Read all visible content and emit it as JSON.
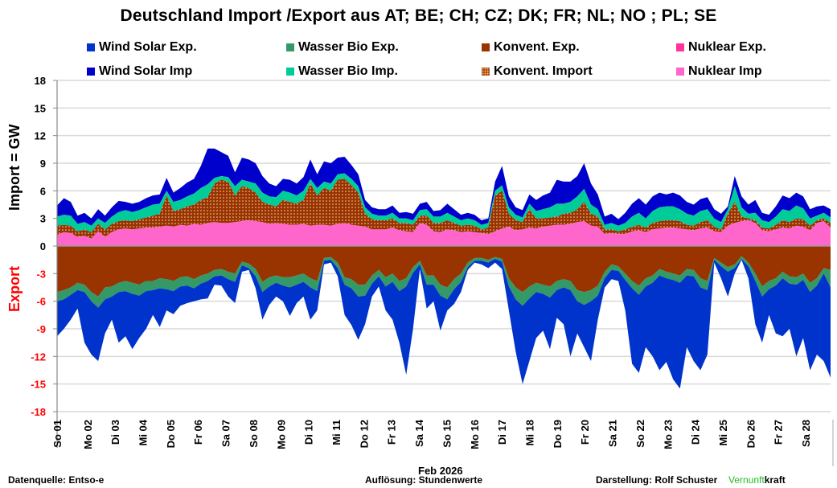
{
  "chart_data": {
    "type": "area",
    "title": "Deutschland  Import /Export  aus AT;  BE;  CH;  CZ;  DK;  FR;  NL;  NO ;  PL;  SE",
    "ylabel_import": "Import   = GW",
    "ylabel_export": "Export",
    "xlabel": "Feb 2026",
    "ylim": [
      -18,
      18
    ],
    "yticks": [
      "18",
      "15",
      "12",
      "9",
      "6",
      "3",
      "0",
      "-3",
      "-6",
      "-9",
      "-12",
      "-15",
      "-18"
    ],
    "ytick_values": [
      18,
      15,
      12,
      9,
      6,
      3,
      0,
      -3,
      -6,
      -9,
      -12,
      -15,
      -18
    ],
    "grid": true,
    "legend_placement": "top",
    "x_tick_labels": [
      "So 01",
      "Mo 02",
      "Di 03",
      "Mi 04",
      "Do 05",
      "Fr 06",
      "Sa 07",
      "So 08",
      "Mo 09",
      "Di 10",
      "Mi 11",
      "Do 12",
      "Fr 13",
      "Sa 14",
      "So 15",
      "Mo 16",
      "Di 17",
      "Mi 18",
      "Do 19",
      "Fr 20",
      "Sa 21",
      "So 22",
      "Mo 23",
      "Di 24",
      "Mi 25",
      "Do 26",
      "Fr 27",
      "Sa 28"
    ],
    "x_unit": "day (6-hour resolution samples)",
    "legend": [
      {
        "name": "Wind Solar Exp.",
        "color": "#0033cc"
      },
      {
        "name": "Wasser Bio Exp.",
        "color": "#339966"
      },
      {
        "name": "Konvent. Exp.",
        "color": "#993300"
      },
      {
        "name": "Nuklear Exp.",
        "color": "#ff3399"
      },
      {
        "name": "Wind Solar Imp",
        "color": "#0000cc"
      },
      {
        "name": "Wasser Bio Imp.",
        "color": "#00cc99"
      },
      {
        "name": "Konvent. Import",
        "color": "#993300",
        "pattern": "dotted"
      },
      {
        "name": "Nuklear Imp",
        "color": "#ff66cc"
      }
    ],
    "import_cumulative": {
      "nuklear": [
        1.2,
        1.5,
        1.4,
        1.0,
        1.1,
        0.8,
        1.6,
        1.0,
        1.5,
        1.8,
        1.9,
        1.8,
        1.9,
        2.0,
        2.0,
        2.1,
        2.2,
        2.1,
        2.3,
        2.2,
        2.4,
        2.3,
        2.5,
        2.6,
        2.5,
        2.5,
        2.6,
        2.7,
        2.8,
        2.7,
        2.6,
        2.4,
        2.5,
        2.4,
        2.3,
        2.3,
        2.4,
        2.2,
        2.3,
        2.3,
        2.2,
        2.4,
        2.5,
        2.3,
        2.2,
        2.1,
        1.8,
        1.8,
        1.8,
        2.0,
        1.7,
        1.6,
        1.5,
        2.5,
        2.3,
        1.6,
        1.5,
        1.8,
        1.7,
        1.5,
        1.6,
        1.5,
        1.4,
        1.3,
        1.6,
        1.9,
        2.1,
        1.7,
        1.8,
        2.0,
        1.9,
        2.1,
        2.2,
        2.3,
        2.3,
        2.4,
        2.6,
        2.7,
        2.2,
        2.1,
        1.3,
        1.4,
        1.3,
        1.3,
        1.6,
        1.7,
        1.5,
        1.8,
        1.9,
        2.0,
        2.0,
        1.9,
        1.8,
        1.7,
        1.9,
        2.0,
        1.6,
        1.5,
        2.2,
        2.5,
        2.7,
        2.8,
        2.5,
        1.7,
        1.6,
        1.8,
        2.0,
        1.9,
        2.2,
        2.1,
        1.7,
        2.5,
        2.7,
        2.0
      ],
      "konvent": [
        2.2,
        2.3,
        2.2,
        1.6,
        1.8,
        1.5,
        2.4,
        1.8,
        2.4,
        2.7,
        2.8,
        2.7,
        2.9,
        3.1,
        3.3,
        3.5,
        5.5,
        3.8,
        4.0,
        4.3,
        4.5,
        5.0,
        5.3,
        6.8,
        7.2,
        7.0,
        5.5,
        6.5,
        6.3,
        5.8,
        4.8,
        4.5,
        4.3,
        5.0,
        4.8,
        4.6,
        5.0,
        6.8,
        5.5,
        6.3,
        6.0,
        7.2,
        7.3,
        6.6,
        5.8,
        3.5,
        2.9,
        2.8,
        2.8,
        3.0,
        2.5,
        2.5,
        2.3,
        3.3,
        3.3,
        2.5,
        2.5,
        2.8,
        2.5,
        2.2,
        2.3,
        2.2,
        1.8,
        2.0,
        5.5,
        6.0,
        3.5,
        2.8,
        2.6,
        4.0,
        3.0,
        3.0,
        3.1,
        3.2,
        3.5,
        3.6,
        4.0,
        4.8,
        3.5,
        3.2,
        1.8,
        1.8,
        1.6,
        1.8,
        2.1,
        2.3,
        2.0,
        2.5,
        2.7,
        2.8,
        2.8,
        2.7,
        2.3,
        2.2,
        2.6,
        2.8,
        2.1,
        1.8,
        3.5,
        4.8,
        3.2,
        3.0,
        2.8,
        2.0,
        1.9,
        2.3,
        2.8,
        2.6,
        3.0,
        2.9,
        2.2,
        2.8,
        3.0,
        2.5
      ],
      "wasser": [
        3.2,
        3.4,
        3.3,
        2.4,
        2.6,
        2.2,
        3.0,
        2.5,
        3.2,
        3.7,
        3.9,
        3.7,
        3.9,
        4.2,
        4.5,
        4.6,
        6.0,
        4.8,
        5.0,
        5.4,
        5.7,
        6.3,
        6.7,
        7.4,
        7.6,
        7.5,
        6.5,
        7.2,
        7.0,
        6.8,
        5.8,
        5.4,
        5.3,
        6.0,
        5.8,
        5.5,
        6.0,
        7.3,
        6.3,
        7.0,
        6.8,
        7.8,
        7.9,
        7.3,
        6.5,
        4.2,
        3.5,
        3.3,
        3.3,
        3.6,
        3.0,
        3.0,
        2.8,
        3.9,
        4.0,
        3.2,
        3.2,
        3.6,
        3.2,
        2.8,
        3.0,
        2.8,
        2.3,
        2.5,
        6.0,
        6.6,
        4.2,
        3.4,
        3.1,
        4.6,
        3.8,
        4.0,
        4.2,
        4.6,
        4.6,
        4.8,
        5.4,
        6.2,
        4.5,
        4.0,
        2.3,
        2.5,
        2.2,
        2.5,
        3.2,
        3.6,
        3.0,
        3.8,
        4.2,
        4.3,
        4.3,
        4.0,
        3.5,
        3.3,
        3.8,
        4.0,
        3.0,
        2.6,
        4.0,
        6.5,
        4.2,
        3.5,
        3.6,
        2.8,
        2.6,
        3.2,
        4.0,
        3.8,
        4.4,
        4.1,
        3.0,
        3.3,
        3.6,
        3.1
      ],
      "wind": [
        4.4,
        5.2,
        4.8,
        3.3,
        3.6,
        3.0,
        4.0,
        3.3,
        4.2,
        4.9,
        4.8,
        4.6,
        4.8,
        5.2,
        5.5,
        5.6,
        7.4,
        5.8,
        6.3,
        6.9,
        7.3,
        8.7,
        10.6,
        10.6,
        10.2,
        9.8,
        8.0,
        9.6,
        9.4,
        9.0,
        7.6,
        6.8,
        6.5,
        7.3,
        7.2,
        6.8,
        7.5,
        9.4,
        7.8,
        9.2,
        9.0,
        9.6,
        9.7,
        8.8,
        7.8,
        5.0,
        4.2,
        4.0,
        4.0,
        4.4,
        3.6,
        3.7,
        3.5,
        4.6,
        4.8,
        3.8,
        3.9,
        4.6,
        4.0,
        3.4,
        3.6,
        3.4,
        2.8,
        3.0,
        7.0,
        8.7,
        5.4,
        4.2,
        3.9,
        5.6,
        5.0,
        5.5,
        5.8,
        7.2,
        7.0,
        7.0,
        7.6,
        9.0,
        6.8,
        5.6,
        3.2,
        3.5,
        2.9,
        3.6,
        4.6,
        5.2,
        4.5,
        5.4,
        5.8,
        5.6,
        5.8,
        5.5,
        4.8,
        4.5,
        5.1,
        5.3,
        4.0,
        3.5,
        4.3,
        7.6,
        5.4,
        4.5,
        5.0,
        3.6,
        3.4,
        4.3,
        5.5,
        5.2,
        5.8,
        5.4,
        4.0,
        4.3,
        4.4,
        4.0
      ]
    },
    "export_cumulative": {
      "konvent": [
        -5.0,
        -4.8,
        -4.5,
        -4.0,
        -4.2,
        -5.0,
        -5.5,
        -4.5,
        -4.4,
        -4.0,
        -3.8,
        -4.0,
        -4.2,
        -3.8,
        -3.8,
        -3.5,
        -3.6,
        -3.8,
        -3.4,
        -3.3,
        -3.6,
        -3.2,
        -3.0,
        -2.6,
        -2.5,
        -2.8,
        -3.0,
        -1.7,
        -1.9,
        -2.5,
        -3.9,
        -3.4,
        -3.2,
        -3.4,
        -3.4,
        -3.2,
        -3.0,
        -3.5,
        -3.8,
        -1.3,
        -1.2,
        -1.8,
        -3.4,
        -3.6,
        -4.2,
        -4.2,
        -3.2,
        -2.6,
        -3.4,
        -3.0,
        -3.8,
        -3.5,
        -2.3,
        -1.6,
        -3.2,
        -3.2,
        -4.2,
        -4.5,
        -3.6,
        -3.0,
        -1.8,
        -1.3,
        -1.3,
        -1.5,
        -1.2,
        -1.4,
        -3.5,
        -4.5,
        -5.0,
        -4.4,
        -4.0,
        -4.2,
        -4.4,
        -3.8,
        -3.6,
        -3.8,
        -4.8,
        -5.0,
        -4.8,
        -4.3,
        -2.8,
        -2.0,
        -2.2,
        -3.0,
        -3.8,
        -4.3,
        -3.5,
        -3.2,
        -2.5,
        -2.8,
        -3.0,
        -3.2,
        -2.5,
        -2.6,
        -3.5,
        -3.8,
        -1.3,
        -1.8,
        -2.3,
        -2.0,
        -1.1,
        -1.8,
        -3.0,
        -4.4,
        -3.8,
        -3.5,
        -2.8,
        -3.3,
        -3.4,
        -3.0,
        -4.0,
        -3.5,
        -2.4,
        -2.6
      ],
      "wasser": [
        -6.0,
        -5.8,
        -5.3,
        -4.8,
        -5.0,
        -6.0,
        -6.7,
        -5.8,
        -5.5,
        -5.0,
        -4.9,
        -5.2,
        -5.4,
        -4.9,
        -4.8,
        -4.6,
        -4.7,
        -4.9,
        -4.4,
        -4.3,
        -4.6,
        -4.1,
        -3.8,
        -3.3,
        -3.2,
        -3.6,
        -3.9,
        -2.1,
        -2.4,
        -3.3,
        -5.0,
        -4.4,
        -4.0,
        -4.3,
        -4.5,
        -4.2,
        -3.9,
        -4.5,
        -4.9,
        -1.6,
        -1.5,
        -2.4,
        -4.2,
        -4.6,
        -5.5,
        -5.4,
        -4.1,
        -3.3,
        -4.4,
        -3.9,
        -4.9,
        -4.4,
        -2.9,
        -2.0,
        -4.2,
        -4.2,
        -5.4,
        -5.8,
        -4.7,
        -3.9,
        -2.3,
        -1.6,
        -1.6,
        -1.8,
        -1.4,
        -1.7,
        -4.4,
        -5.8,
        -6.5,
        -5.7,
        -5.0,
        -5.2,
        -5.6,
        -4.8,
        -4.5,
        -4.8,
        -6.0,
        -6.4,
        -6.0,
        -5.4,
        -3.5,
        -2.6,
        -2.7,
        -3.7,
        -4.6,
        -5.3,
        -4.4,
        -4.0,
        -3.2,
        -3.5,
        -3.7,
        -4.0,
        -3.2,
        -3.3,
        -4.5,
        -4.8,
        -1.5,
        -2.2,
        -2.8,
        -2.4,
        -1.4,
        -2.2,
        -3.8,
        -5.5,
        -4.7,
        -4.3,
        -3.5,
        -4.1,
        -4.2,
        -3.7,
        -5.0,
        -4.3,
        -3.0,
        -4.5
      ],
      "wind": [
        -9.8,
        -9.0,
        -8.0,
        -6.8,
        -10.5,
        -11.8,
        -12.5,
        -9.5,
        -8.0,
        -10.5,
        -9.8,
        -11.2,
        -10.0,
        -9.0,
        -7.5,
        -8.8,
        -7.0,
        -7.4,
        -6.5,
        -6.2,
        -6.0,
        -5.8,
        -5.7,
        -4.2,
        -4.3,
        -5.5,
        -6.2,
        -2.8,
        -2.6,
        -4.6,
        -8.0,
        -6.4,
        -5.5,
        -6.0,
        -7.6,
        -6.2,
        -5.5,
        -8.0,
        -7.0,
        -2.0,
        -1.8,
        -3.3,
        -7.5,
        -8.6,
        -10.2,
        -8.5,
        -5.5,
        -4.4,
        -7.0,
        -8.0,
        -10.5,
        -14.0,
        -9.0,
        -2.5,
        -6.8,
        -6.0,
        -9.2,
        -7.0,
        -6.3,
        -5.0,
        -2.6,
        -1.8,
        -2.0,
        -2.4,
        -1.8,
        -2.5,
        -7.0,
        -11.5,
        -15.0,
        -12.5,
        -10.0,
        -9.2,
        -11.2,
        -7.8,
        -8.5,
        -12.0,
        -9.5,
        -11.0,
        -12.5,
        -8.0,
        -4.5,
        -3.6,
        -3.8,
        -7.0,
        -12.8,
        -13.8,
        -11.0,
        -12.0,
        -13.5,
        -12.6,
        -14.5,
        -15.5,
        -11.0,
        -12.5,
        -13.5,
        -11.8,
        -1.8,
        -3.5,
        -5.5,
        -3.0,
        -1.5,
        -3.5,
        -8.5,
        -10.5,
        -7.5,
        -9.5,
        -9.8,
        -9.0,
        -12.0,
        -10.0,
        -13.5,
        -11.8,
        -12.5,
        -14.3
      ]
    }
  },
  "footer": {
    "source": "Datenquelle: Entso-e",
    "resolution": "Auflösung: Stundenwerte",
    "author": "Darstellung:  Rolf Schuster",
    "brand_green": "Vernunft",
    "brand_black": "kraft"
  },
  "colors": {
    "wind_exp": "#0033cc",
    "wasser_exp": "#339966",
    "konvent_exp": "#993300",
    "nuklear_exp": "#ff3399",
    "wind_imp": "#0000cc",
    "wasser_imp": "#00cc99",
    "konvent_imp": "#993300",
    "nuklear_imp": "#ff66cc",
    "export_label": "#ff0000",
    "brand_green": "#22bb22",
    "grid": "#d9d9d9"
  }
}
